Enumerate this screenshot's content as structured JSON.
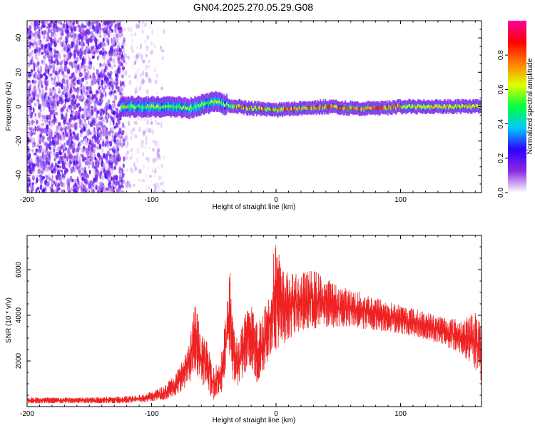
{
  "title": "GN04.2025.270.05.29.G08",
  "charts": [
    {
      "id": "spectrogram",
      "chart_data": {
        "type": "heatmap",
        "xlabel": "Height of straight line (km)",
        "ylabel": "Frequency (Hz)",
        "xlim": [
          -200,
          165
        ],
        "ylim": [
          -50,
          50
        ],
        "x_ticks": [
          -200,
          -100,
          0,
          100
        ],
        "y_ticks": [
          -40,
          -20,
          0,
          20,
          40
        ],
        "colorbar": {
          "label": "Normalized spectral amplitude",
          "range": [
            0,
            1
          ],
          "ticks": [
            0.0,
            0.2,
            0.4,
            0.6,
            0.8
          ],
          "tick_labels": [
            "0.0",
            "0.2",
            "0.4",
            "0.6",
            "0.8"
          ],
          "colormap": [
            "#ffffff",
            "#8a2be2",
            "#3000ff",
            "#00c8ff",
            "#00ff40",
            "#e0ff00",
            "#ff8000",
            "#ff0000",
            "#ff00a0"
          ]
        },
        "features": {
          "noise_region_x": [
            -200,
            -90
          ],
          "dense_noise_x": [
            -200,
            -122
          ],
          "line_center_freq": [
            [
              -125,
              0
            ],
            [
              -80,
              0
            ],
            [
              -70,
              -1
            ],
            [
              -60,
              1
            ],
            [
              -50,
              3
            ],
            [
              -40,
              1
            ],
            [
              -30,
              0
            ],
            [
              -20,
              -1
            ],
            [
              0,
              -2
            ],
            [
              20,
              -1
            ],
            [
              40,
              0
            ],
            [
              60,
              -1
            ],
            [
              80,
              -1
            ],
            [
              100,
              0
            ],
            [
              120,
              0
            ],
            [
              165,
              0
            ]
          ]
        }
      }
    },
    {
      "id": "snr",
      "chart_data": {
        "type": "line",
        "xlabel": "Height of straight line (km)",
        "ylabel": "SNR (10 * v/v)",
        "xlim": [
          -200,
          165
        ],
        "ylim": [
          0,
          7500
        ],
        "x_ticks": [
          -200,
          -100,
          0,
          100
        ],
        "y_ticks": [
          2000,
          4000,
          6000
        ],
        "color": "#ee2222",
        "envelope": [
          [
            -200,
            150,
            400
          ],
          [
            -150,
            150,
            400
          ],
          [
            -125,
            150,
            450
          ],
          [
            -105,
            200,
            550
          ],
          [
            -90,
            300,
            900
          ],
          [
            -80,
            500,
            1500
          ],
          [
            -70,
            1000,
            2700
          ],
          [
            -65,
            1600,
            4600
          ],
          [
            -60,
            1000,
            3200
          ],
          [
            -55,
            600,
            2800
          ],
          [
            -50,
            300,
            1800
          ],
          [
            -45,
            400,
            2000
          ],
          [
            -40,
            1500,
            4200
          ],
          [
            -37,
            2200,
            6100
          ],
          [
            -34,
            900,
            3500
          ],
          [
            -30,
            800,
            3000
          ],
          [
            -25,
            1500,
            4000
          ],
          [
            -20,
            1800,
            4800
          ],
          [
            -15,
            900,
            3600
          ],
          [
            -10,
            1500,
            4500
          ],
          [
            -5,
            2200,
            5000
          ],
          [
            -2,
            2500,
            6800
          ],
          [
            0,
            2500,
            7500
          ],
          [
            5,
            2700,
            6000
          ],
          [
            15,
            3200,
            5800
          ],
          [
            30,
            3400,
            6000
          ],
          [
            50,
            3500,
            5300
          ],
          [
            70,
            3400,
            5000
          ],
          [
            90,
            3300,
            4600
          ],
          [
            110,
            3100,
            4300
          ],
          [
            130,
            2800,
            4000
          ],
          [
            150,
            2300,
            3800
          ],
          [
            160,
            1600,
            4200
          ],
          [
            165,
            1000,
            3500
          ]
        ]
      }
    }
  ]
}
